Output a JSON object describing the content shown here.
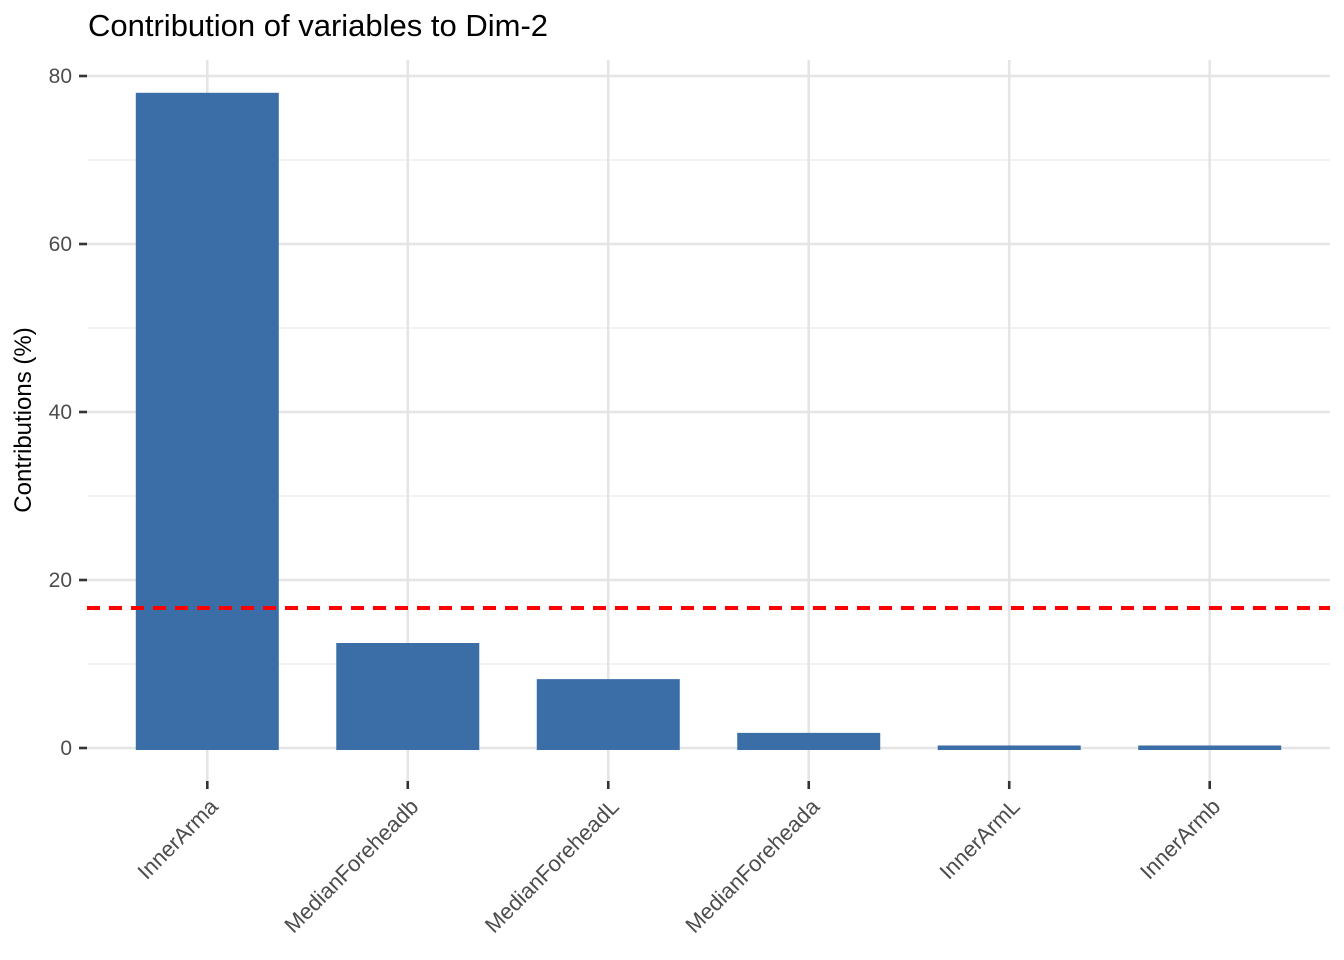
{
  "chart_data": {
    "type": "bar",
    "title": "Contribution of variables to Dim-2",
    "ylabel": "Contributions (%)",
    "xlabel": "",
    "categories": [
      "InnerArma",
      "MedianForeheadb",
      "MedianForeheadL",
      "MedianForeheada",
      "InnerArmL",
      "InnerArmb"
    ],
    "values": [
      78,
      12.5,
      8.2,
      1.8,
      0.3,
      0.3
    ],
    "reference_line": {
      "value": 16.67,
      "style": "dashed"
    },
    "y_axis": {
      "major_ticks": [
        0,
        20,
        40,
        60,
        80
      ],
      "minor_ticks": [
        10,
        30,
        50,
        70
      ],
      "range": [
        0,
        81.9
      ]
    },
    "x_tick_rotation_deg": 45,
    "grid": true,
    "legend": "none",
    "colors": {
      "bar": "#3B6EA6",
      "reference_line": "#FF0000",
      "grid_major": "#E5E5E5",
      "grid_minor": "#EFEFEF",
      "axis_text": "#4D4D4D",
      "tick_mark": "#333333",
      "title_text": "#000000",
      "background": "#FFFFFF"
    }
  }
}
